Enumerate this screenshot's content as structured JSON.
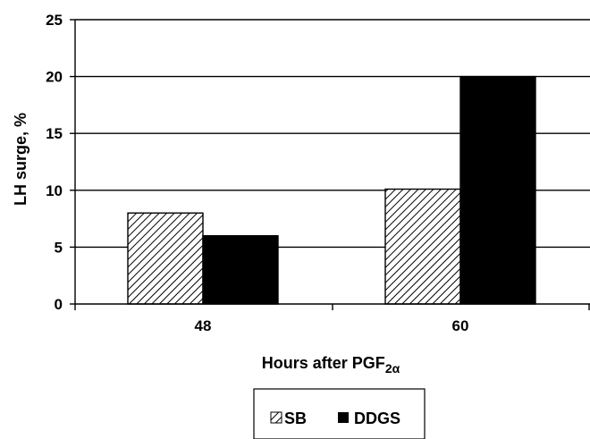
{
  "chart_data": {
    "type": "bar",
    "categories": [
      "48",
      "60"
    ],
    "series": [
      {
        "name": "SB",
        "values": [
          8,
          10.1
        ],
        "pattern": "diagonal-hatch"
      },
      {
        "name": "DDGS",
        "values": [
          6,
          20
        ],
        "color": "#000000"
      }
    ],
    "xlabel": "Hours after PGF",
    "xlabel_sub": "2α",
    "ylabel": "LH surge, %",
    "ylim": [
      0,
      25
    ],
    "yticks": [
      "0",
      "5",
      "10",
      "15",
      "20",
      "25"
    ],
    "grid": true,
    "legend": "bottom"
  }
}
